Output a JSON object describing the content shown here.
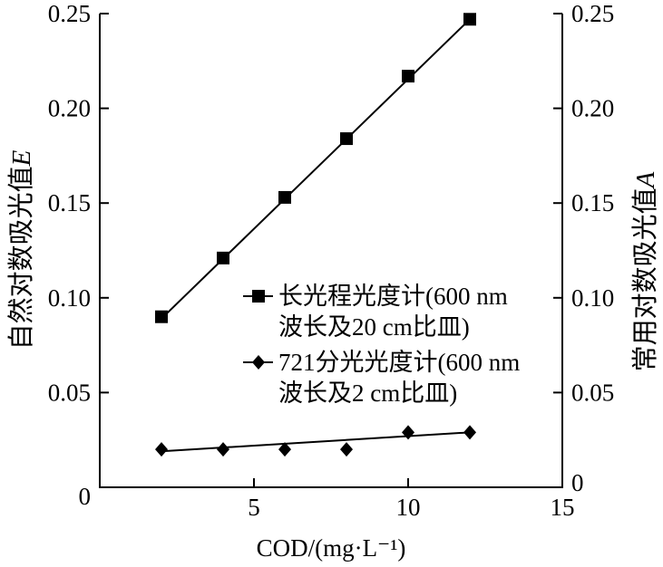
{
  "colors": {
    "ink": "#000000",
    "background": "#ffffff"
  },
  "chart_data": {
    "type": "scatter",
    "xlabel": "COD/(mg·L⁻¹)",
    "ylabel_left": {
      "text": "自然对数吸光值",
      "symbol": "E"
    },
    "ylabel_right": {
      "text": "常用对数吸光值",
      "symbol": "A"
    },
    "xlim": [
      0,
      15
    ],
    "ylim_left": [
      0,
      0.25
    ],
    "ylim_right": [
      0,
      0.25
    ],
    "x_ticks": [
      5,
      10,
      15
    ],
    "x_tick_labels": [
      "5",
      "10",
      "15"
    ],
    "y_left_ticks": [
      0,
      0.05,
      0.1,
      0.15,
      0.2,
      0.25
    ],
    "y_left_tick_labels": [
      "0",
      "0.05",
      "0.10",
      "0.15",
      "0.20",
      "0.25"
    ],
    "y_right_ticks": [
      0,
      0.05,
      0.1,
      0.15,
      0.2,
      0.25
    ],
    "y_right_tick_labels": [
      "0",
      "0.05",
      "0.10",
      "0.15",
      "0.20",
      "0.25"
    ],
    "grid": false,
    "legend_position": "center-right",
    "series": [
      {
        "name": "长光程光度计(600 nm\n波长及20 cm比皿)",
        "marker": "square",
        "x": [
          2,
          4,
          6,
          8,
          10,
          12
        ],
        "y": [
          0.09,
          0.121,
          0.153,
          0.184,
          0.217,
          0.247
        ],
        "fit_line": {
          "x": [
            2,
            12
          ],
          "y": [
            0.089,
            0.247
          ]
        }
      },
      {
        "name": "721分光光度计(600 nm\n波长及2 cm比皿)",
        "marker": "diamond",
        "x": [
          2,
          4,
          6,
          8,
          10,
          12
        ],
        "y": [
          0.02,
          0.02,
          0.02,
          0.02,
          0.029,
          0.029
        ],
        "fit_line": {
          "x": [
            2,
            12
          ],
          "y": [
            0.019,
            0.029
          ]
        }
      }
    ]
  }
}
